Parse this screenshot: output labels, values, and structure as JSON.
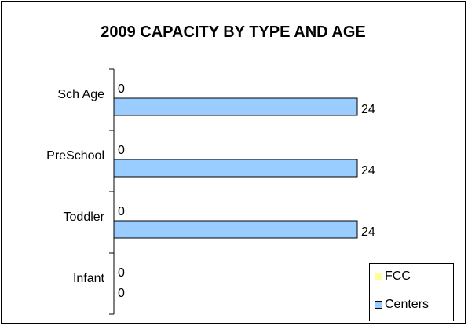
{
  "chart_data": {
    "type": "bar",
    "orientation": "horizontal",
    "title": "2009 CAPACITY BY TYPE AND AGE",
    "categories": [
      "Sch Age",
      "PreSchool",
      "Toddler",
      "Infant"
    ],
    "series": [
      {
        "name": "FCC",
        "values": [
          0,
          0,
          0,
          0
        ],
        "color": "#FFFF99"
      },
      {
        "name": "Centers",
        "values": [
          24,
          24,
          24,
          0
        ],
        "color": "#99CCFF"
      }
    ],
    "xlim": [
      0,
      24
    ],
    "data_labels": true,
    "grid": false,
    "legend_position": "bottom-right"
  }
}
